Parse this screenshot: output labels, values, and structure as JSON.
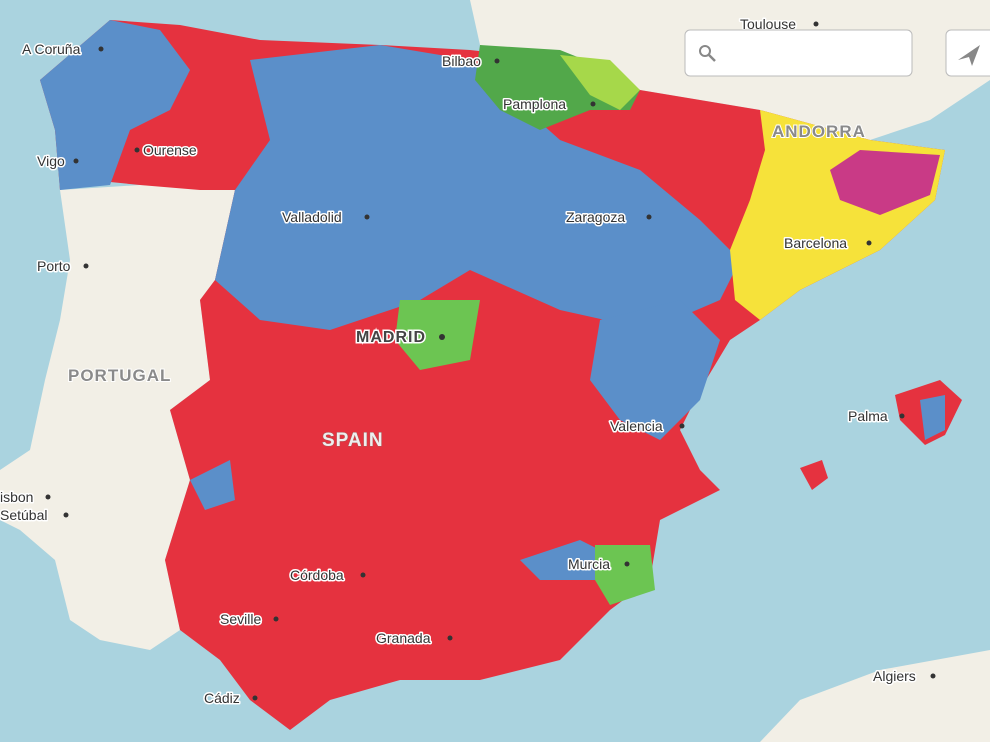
{
  "cities": [
    "Toulouse",
    "A Coruña",
    "Bilbao",
    "Pamplona",
    "Ourense",
    "Vigo",
    "Valladolid",
    "Zaragoza",
    "Barcelona",
    "Porto",
    "Palma",
    "Valencia",
    "isbon",
    "Setúbal",
    "Córdoba",
    "Murcia",
    "Seville",
    "Granada",
    "Cádiz",
    "Algiers"
  ],
  "capital": "MADRID",
  "countries": [
    "ANDORRA",
    "PORTUGAL",
    "SPAIN"
  ]
}
